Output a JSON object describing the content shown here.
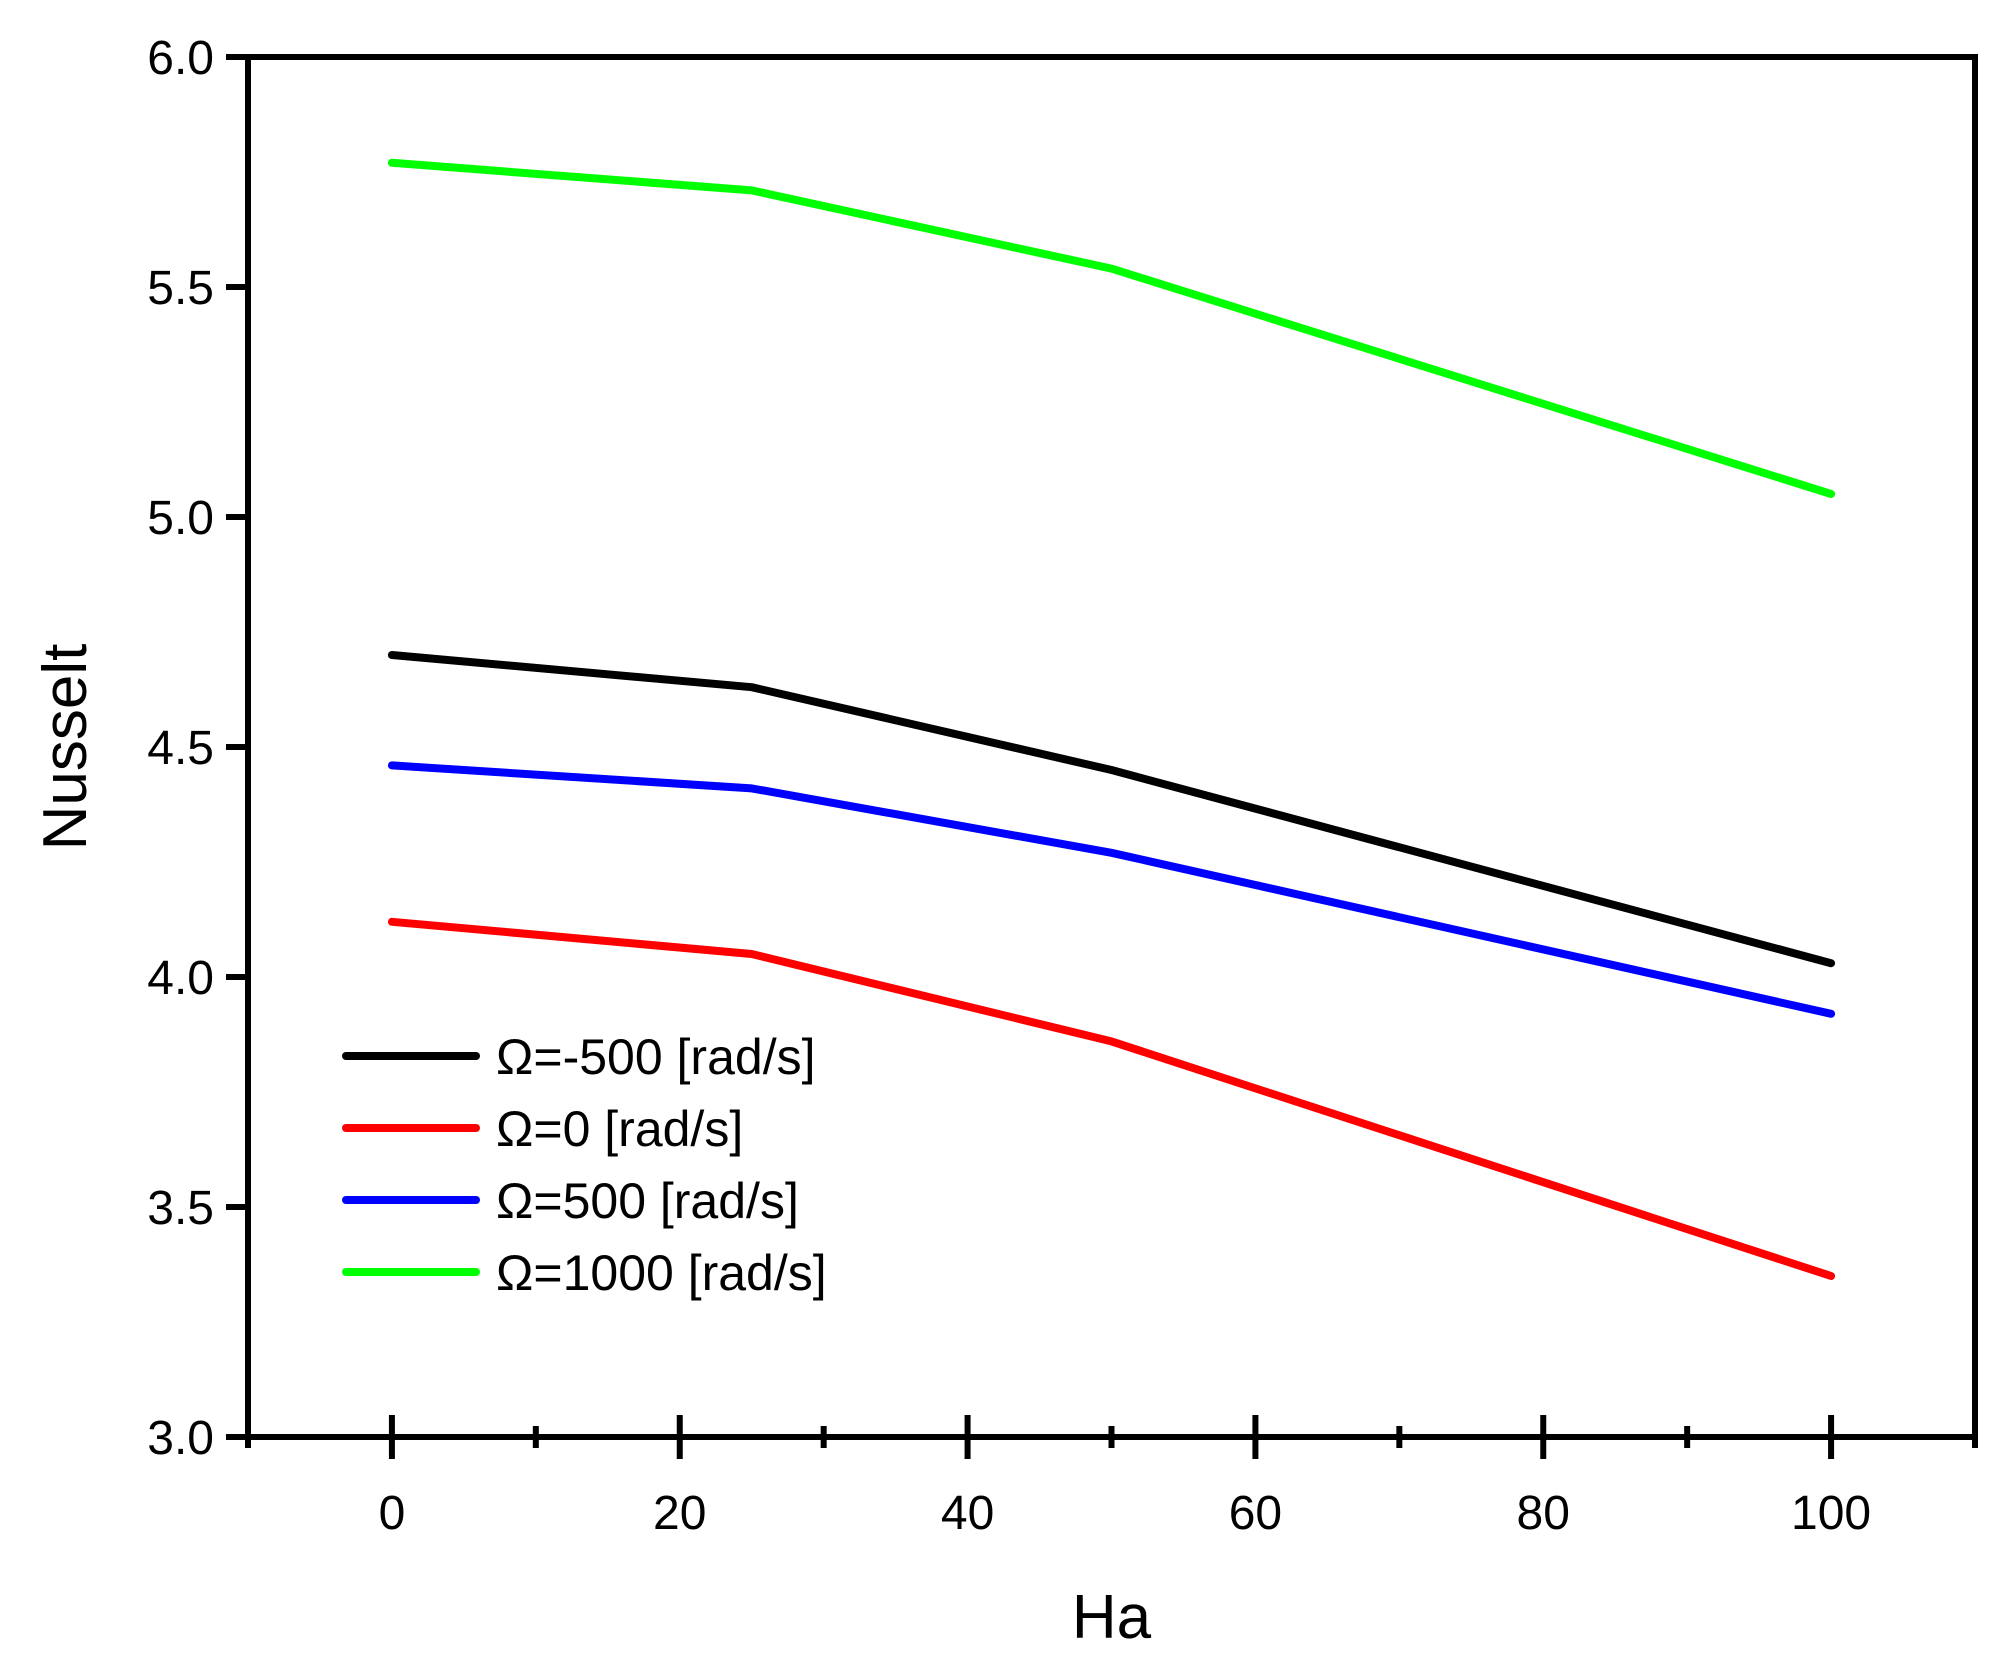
{
  "chart_data": {
    "type": "line",
    "title": "",
    "xlabel": "Ha",
    "ylabel": "Nusselt",
    "xlim": [
      -10,
      110
    ],
    "ylim": [
      3.0,
      6.0
    ],
    "x_ticks": [
      0,
      20,
      40,
      60,
      80,
      100
    ],
    "x_minor_ticks": [
      -10,
      10,
      30,
      50,
      70,
      90,
      110
    ],
    "y_ticks": [
      3.0,
      3.5,
      4.0,
      4.5,
      5.0,
      5.5,
      6.0
    ],
    "y_tick_labels": [
      "3.0",
      "3.5",
      "4.0",
      "4.5",
      "5.0",
      "5.5",
      "6.0"
    ],
    "grid": false,
    "legend_position": "bottom-left",
    "x": [
      0,
      25,
      50,
      100
    ],
    "series": [
      {
        "name": "Ω=-500 [rad/s]",
        "color": "#000000",
        "values": [
          4.7,
          4.63,
          4.45,
          4.03
        ]
      },
      {
        "name": "Ω=0 [rad/s]",
        "color": "#ff0000",
        "values": [
          4.12,
          4.05,
          3.86,
          3.35
        ]
      },
      {
        "name": "Ω=500 [rad/s]",
        "color": "#0000ff",
        "values": [
          4.46,
          4.41,
          4.27,
          3.92
        ]
      },
      {
        "name": "Ω=1000 [rad/s]",
        "color": "#00ff00",
        "values": [
          5.77,
          5.71,
          5.54,
          5.05
        ]
      }
    ]
  }
}
